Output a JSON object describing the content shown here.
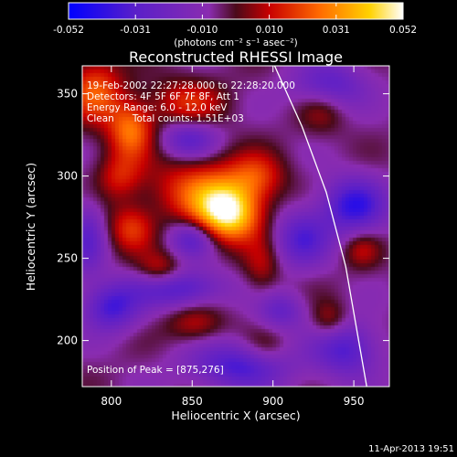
{
  "colorbar": {
    "ticks": [
      "-0.052",
      "-0.031",
      "-0.010",
      "0.010",
      "0.031",
      "0.052"
    ],
    "unit_label": "(photons cm⁻² s⁻¹ asec⁻²)",
    "range": [
      -0.052,
      0.052
    ],
    "colors": [
      "#0000ff",
      "#5a1fc9",
      "#8a2cb0",
      "#4a0a1a",
      "#c80000",
      "#ff6a00",
      "#ffd200",
      "#ffffff"
    ]
  },
  "chart_data": {
    "type": "heatmap",
    "title": "Reconstructed RHESSI Image",
    "xlabel": "Heliocentric X (arcsec)",
    "ylabel": "Heliocentric Y (arcsec)",
    "xlim": [
      782,
      972
    ],
    "ylim": [
      172,
      367
    ],
    "x_ticks": [
      "800",
      "850",
      "900",
      "950"
    ],
    "y_ticks": [
      "200",
      "250",
      "300",
      "350"
    ],
    "x_tick_values": [
      800,
      850,
      900,
      950
    ],
    "y_tick_values": [
      200,
      250,
      300,
      350
    ],
    "annotations": [
      "19-Feb-2002 22:27:28.000 to 22:28:20.000",
      "Detectors: 4F 5F 6F 7F 8F, Att 1",
      "Energy Range: 6.0 - 12.0 keV",
      "Clean      Total counts: 1.51E+03"
    ],
    "peak_label": "Position of Peak = [875,276]",
    "peak": [
      875,
      276
    ],
    "limb_arc": [
      [
        901,
        367
      ],
      [
        918,
        330
      ],
      [
        933,
        290
      ],
      [
        945,
        245
      ],
      [
        953,
        200
      ],
      [
        958,
        172
      ]
    ],
    "blobs": [
      {
        "x": 872,
        "y": 277,
        "sx": 14,
        "sy": 12,
        "a": 0.052
      },
      {
        "x": 855,
        "y": 292,
        "sx": 22,
        "sy": 14,
        "a": 0.026
      },
      {
        "x": 890,
        "y": 300,
        "sx": 12,
        "sy": 10,
        "a": 0.02
      },
      {
        "x": 812,
        "y": 328,
        "sx": 10,
        "sy": 12,
        "a": 0.032
      },
      {
        "x": 790,
        "y": 352,
        "sx": 12,
        "sy": 14,
        "a": 0.028
      },
      {
        "x": 847,
        "y": 345,
        "sx": 16,
        "sy": 10,
        "a": 0.02
      },
      {
        "x": 805,
        "y": 300,
        "sx": 10,
        "sy": 10,
        "a": 0.018
      },
      {
        "x": 812,
        "y": 268,
        "sx": 10,
        "sy": 10,
        "a": 0.022
      },
      {
        "x": 830,
        "y": 242,
        "sx": 10,
        "sy": 8,
        "a": 0.02
      },
      {
        "x": 852,
        "y": 210,
        "sx": 12,
        "sy": 8,
        "a": 0.016
      },
      {
        "x": 893,
        "y": 245,
        "sx": 8,
        "sy": 12,
        "a": 0.014
      },
      {
        "x": 935,
        "y": 212,
        "sx": 8,
        "sy": 8,
        "a": 0.016
      },
      {
        "x": 955,
        "y": 255,
        "sx": 8,
        "sy": 8,
        "a": 0.014
      },
      {
        "x": 895,
        "y": 195,
        "sx": 10,
        "sy": 8,
        "a": 0.012
      },
      {
        "x": 930,
        "y": 340,
        "sx": 10,
        "sy": 10,
        "a": 0.012
      },
      {
        "x": 840,
        "y": 232,
        "sx": 20,
        "sy": 8,
        "a": -0.03
      },
      {
        "x": 850,
        "y": 262,
        "sx": 10,
        "sy": 8,
        "a": -0.026
      },
      {
        "x": 848,
        "y": 322,
        "sx": 12,
        "sy": 8,
        "a": -0.024
      },
      {
        "x": 800,
        "y": 220,
        "sx": 12,
        "sy": 10,
        "a": -0.03
      },
      {
        "x": 880,
        "y": 185,
        "sx": 22,
        "sy": 10,
        "a": -0.03
      },
      {
        "x": 918,
        "y": 262,
        "sx": 12,
        "sy": 12,
        "a": -0.026
      },
      {
        "x": 950,
        "y": 282,
        "sx": 14,
        "sy": 12,
        "a": -0.034
      },
      {
        "x": 945,
        "y": 195,
        "sx": 14,
        "sy": 12,
        "a": -0.028
      },
      {
        "x": 935,
        "y": 355,
        "sx": 16,
        "sy": 10,
        "a": -0.024
      },
      {
        "x": 905,
        "y": 218,
        "sx": 10,
        "sy": 8,
        "a": -0.02
      },
      {
        "x": 785,
        "y": 262,
        "sx": 8,
        "sy": 16,
        "a": -0.022
      }
    ],
    "base": -0.006
  },
  "footer": {
    "date": "11-Apr-2013 19:51"
  }
}
